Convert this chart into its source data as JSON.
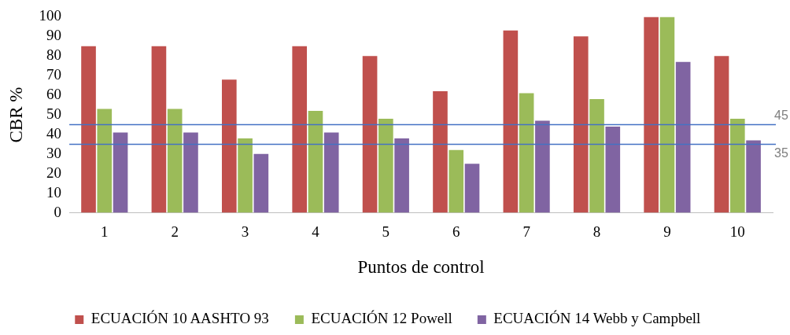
{
  "chart_data": {
    "type": "bar",
    "xlabel": "Puntos de control",
    "ylabel": "CBR %",
    "categories": [
      "1",
      "2",
      "3",
      "4",
      "5",
      "6",
      "7",
      "8",
      "9",
      "10"
    ],
    "series": [
      {
        "name": "ECUACIÓN 10 AASHTO 93",
        "color": "#c0504d",
        "values": [
          85,
          85,
          68,
          85,
          80,
          62,
          93,
          90,
          100,
          80
        ]
      },
      {
        "name": "ECUACIÓN 12 Powell",
        "color": "#9bbb59",
        "values": [
          53,
          53,
          38,
          52,
          48,
          32,
          61,
          58,
          100,
          48
        ]
      },
      {
        "name": "ECUACIÓN 14 Webb y Campbell",
        "color": "#8064a2",
        "values": [
          41,
          41,
          30,
          41,
          38,
          25,
          47,
          44,
          77,
          37
        ]
      }
    ],
    "ylim": [
      0,
      100
    ],
    "yticks": [
      0,
      10,
      20,
      30,
      40,
      50,
      60,
      70,
      80,
      90,
      100
    ],
    "ref_lines": [
      {
        "axis": "y",
        "value": 45,
        "label": "45",
        "color": "#4472c4"
      },
      {
        "axis": "y",
        "value": 35,
        "label": "35",
        "color": "#4472c4"
      }
    ],
    "grid": false,
    "legend": "bottom"
  }
}
